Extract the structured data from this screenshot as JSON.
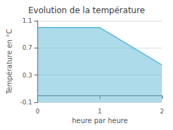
{
  "chart_data": {
    "type": "line",
    "title": "Evolution de la température",
    "x_label": "heure par heure",
    "y_label": "Température en °C",
    "x": [
      0,
      1,
      2
    ],
    "values": [
      1.0,
      1.0,
      0.45
    ],
    "xlim": [
      0,
      2
    ],
    "ylim": [
      -0.1,
      1.1
    ],
    "xticks": [
      0,
      1,
      2
    ],
    "yticks": [
      -0.1,
      0.3,
      0.7,
      1.1
    ],
    "color": "#5bb8d4",
    "grid": true
  }
}
